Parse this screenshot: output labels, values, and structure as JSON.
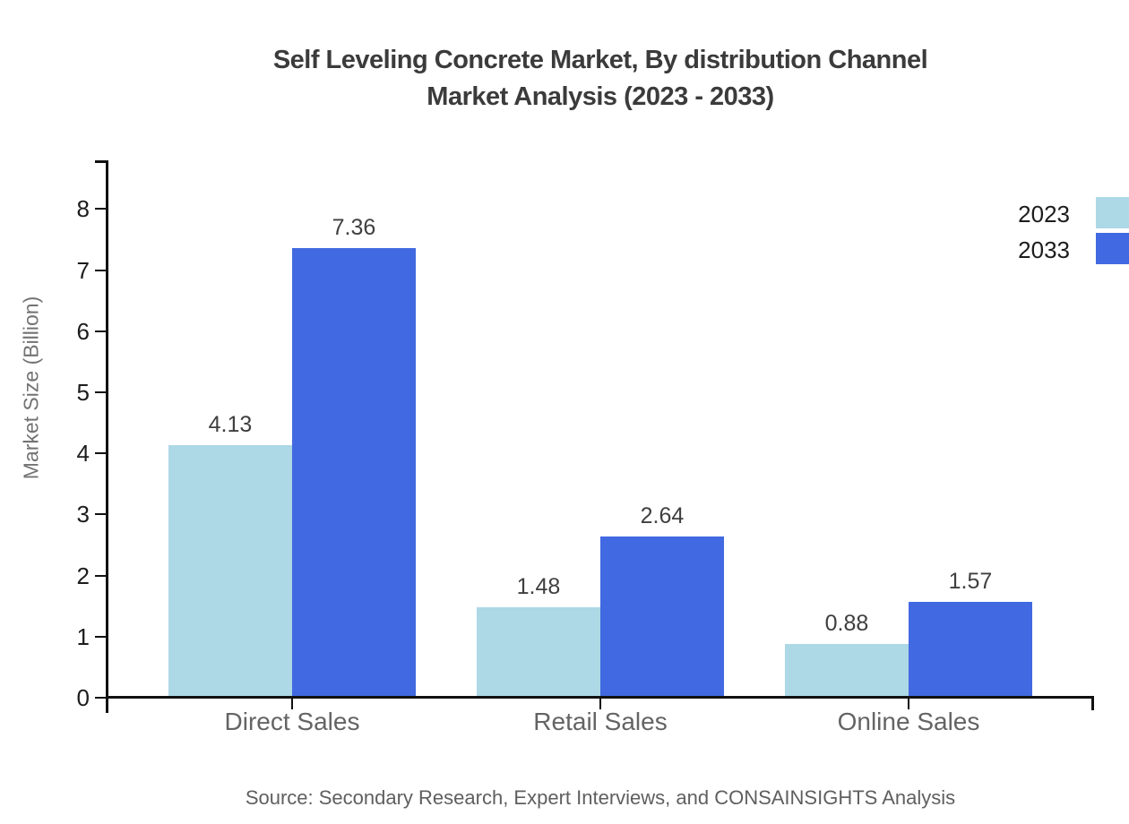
{
  "source_note": "Source: Secondary Research, Expert Interviews, and CONSAINSIGHTS Analysis",
  "chart_data": {
    "type": "bar",
    "title": "Self Leveling Concrete Market, By distribution Channel",
    "subtitle": "Market Analysis (2023 - 2033)",
    "categories": [
      "Direct Sales",
      "Retail Sales",
      "Online Sales"
    ],
    "series": [
      {
        "name": "2023",
        "color": "#ADD8E6",
        "values": [
          4.13,
          1.48,
          0.88
        ]
      },
      {
        "name": "2033",
        "color": "#4169E1",
        "values": [
          7.36,
          2.64,
          1.57
        ]
      }
    ],
    "xlabel": "",
    "ylabel": "Market Size (Billion)",
    "yticks": [
      0,
      1,
      2,
      3,
      4,
      5,
      6,
      7,
      8
    ],
    "ylim": [
      0,
      8.8
    ],
    "grid": false,
    "legend_position": "upper-right-outside",
    "axis_color": "#111111",
    "value_label_decimals": 2
  }
}
